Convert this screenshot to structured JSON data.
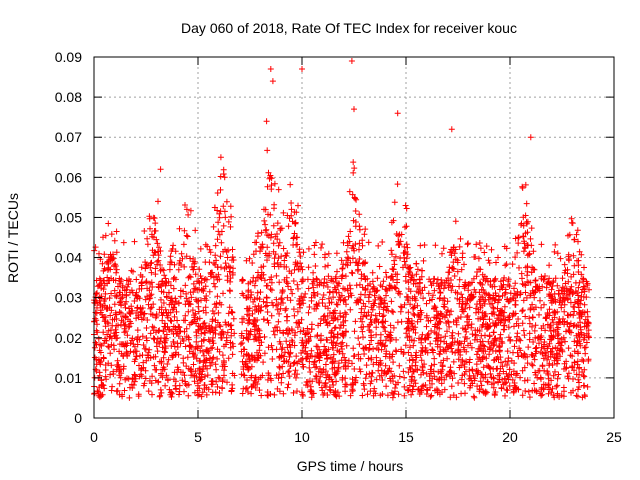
{
  "chart_data": {
    "type": "scatter",
    "title": "Day 060 of 2018, Rate Of TEC Index for receiver kouc",
    "xlabel": "GPS time / hours",
    "ylabel": "ROTI / TECUs",
    "xlim": [
      0,
      25
    ],
    "ylim": [
      0,
      0.09
    ],
    "xticks": [
      "0",
      "5",
      "10",
      "15",
      "20",
      "25"
    ],
    "yticks": [
      "0",
      "0.01",
      "0.02",
      "0.03",
      "0.04",
      "0.05",
      "0.06",
      "0.07",
      "0.08",
      "0.09"
    ],
    "grid": true,
    "marker": "+",
    "series": [
      {
        "name": "ROTI",
        "color": "#ff0000",
        "data_extent": {
          "x_start": 0.0,
          "x_end": 23.8
        },
        "notable_points": [
          {
            "x": 8.5,
            "y": 0.087
          },
          {
            "x": 8.6,
            "y": 0.084
          },
          {
            "x": 10.0,
            "y": 0.087
          },
          {
            "x": 12.4,
            "y": 0.089
          },
          {
            "x": 12.5,
            "y": 0.077
          },
          {
            "x": 14.6,
            "y": 0.076
          },
          {
            "x": 17.2,
            "y": 0.072
          },
          {
            "x": 21.0,
            "y": 0.07
          },
          {
            "x": 8.3,
            "y": 0.074
          },
          {
            "x": 3.2,
            "y": 0.062
          },
          {
            "x": 6.1,
            "y": 0.065
          }
        ],
        "typical_band": {
          "low": 0.01,
          "high": 0.04
        }
      }
    ]
  }
}
